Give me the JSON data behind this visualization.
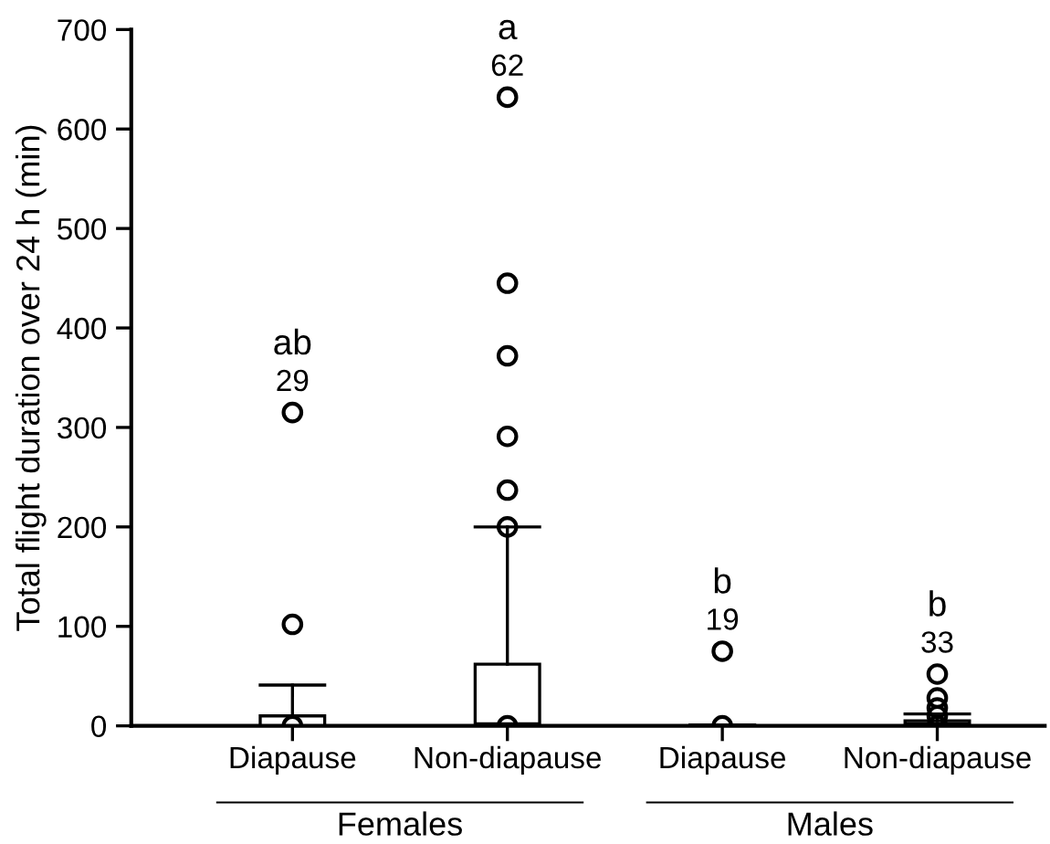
{
  "chart_data": {
    "type": "box",
    "ylabel": "Total flight duration over 24 h (min)",
    "categories": [
      "Diapause",
      "Non-diapause",
      "Diapause",
      "Non-diapause"
    ],
    "boxes": [
      {
        "low": 0,
        "q1": 0,
        "median": 0,
        "q3": 10,
        "high": 41,
        "outliers": [
          0,
          102,
          315
        ]
      },
      {
        "low": 0,
        "q1": 0,
        "median": 2,
        "q3": 62,
        "high": 200,
        "outliers": [
          0,
          200,
          237,
          291,
          372,
          445,
          632
        ]
      },
      {
        "low": 0,
        "q1": 0,
        "median": 0,
        "q3": 1,
        "high": 1,
        "outliers": [
          0,
          75
        ]
      },
      {
        "low": 0,
        "q1": 0,
        "median": 2,
        "q3": 5,
        "high": 12,
        "outliers": [
          0,
          10,
          18,
          28,
          52
        ]
      }
    ],
    "ylim": [
      0,
      700
    ],
    "yticks": [
      0,
      100,
      200,
      300,
      400,
      500,
      600,
      700
    ],
    "grid": false,
    "annotations": [
      "ab",
      "29",
      "a",
      "62",
      "b",
      "19",
      "b",
      "33",
      "Females",
      "Males"
    ]
  }
}
